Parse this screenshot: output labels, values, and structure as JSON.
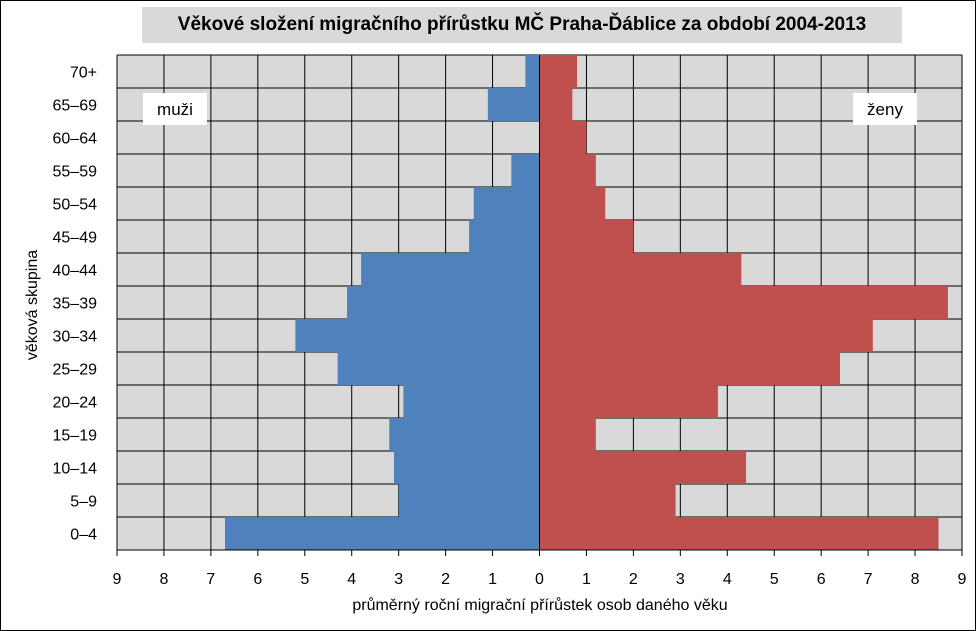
{
  "chart_data": {
    "type": "bar",
    "orientation": "horizontal",
    "title": "Věkové složení migračního přírůstku MČ Praha-Ďáblice za období 2004-2013",
    "xlabel": "průměrný roční migrační přírůstek osob daného věku",
    "ylabel": "věková skupina",
    "xlim": [
      -9,
      9
    ],
    "x_ticks": [
      "9",
      "8",
      "7",
      "6",
      "5",
      "4",
      "3",
      "2",
      "1",
      "0",
      "1",
      "2",
      "3",
      "4",
      "5",
      "6",
      "7",
      "8",
      "9"
    ],
    "categories": [
      "0–4",
      "5–9",
      "10–14",
      "15–19",
      "20–24",
      "25–29",
      "30–34",
      "35–39",
      "40–44",
      "45–49",
      "50–54",
      "55–59",
      "60–64",
      "65–69",
      "70+"
    ],
    "series": [
      {
        "name": "muži",
        "color": "#4f81bd",
        "values": [
          6.7,
          3.0,
          3.1,
          3.2,
          2.9,
          4.3,
          5.2,
          4.1,
          3.8,
          1.5,
          1.4,
          0.6,
          0.0,
          1.1,
          0.3
        ]
      },
      {
        "name": "ženy",
        "color": "#c0504d",
        "values": [
          8.5,
          2.9,
          4.4,
          1.2,
          3.8,
          6.4,
          7.1,
          8.7,
          4.3,
          2.0,
          1.4,
          1.2,
          1.0,
          0.7,
          0.8
        ]
      }
    ],
    "grid": true,
    "legend": "labels inside plot: muži top-left, ženy top-right",
    "plot_background": "#d9d9d9"
  }
}
